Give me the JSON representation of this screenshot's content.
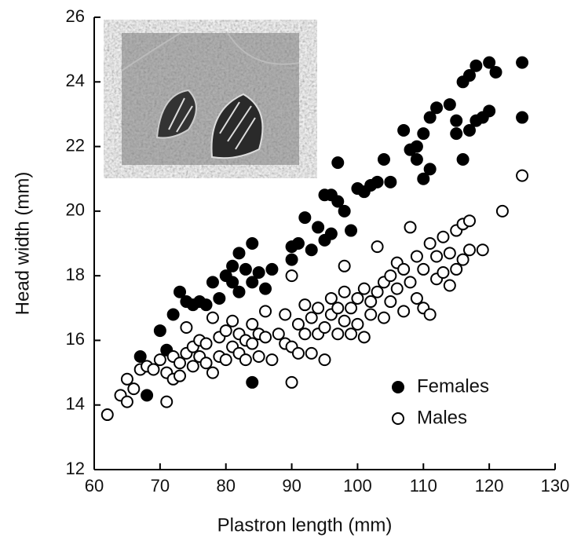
{
  "chart_data": {
    "type": "scatter",
    "x_label": "Plastron length (mm)",
    "y_label": "Head width (mm)",
    "xlim": [
      60,
      130
    ],
    "xticks": [
      60,
      70,
      80,
      90,
      100,
      110,
      120,
      130
    ],
    "ylim": [
      12,
      26
    ],
    "yticks": [
      12,
      14,
      16,
      18,
      20,
      22,
      24,
      26
    ],
    "legend": "lower right",
    "series": [
      {
        "name": "Females",
        "color": "#000000",
        "x": [
          67,
          68,
          70,
          71,
          72,
          73,
          74,
          75,
          76,
          77,
          78,
          79,
          80,
          81,
          81,
          82,
          82,
          83,
          84,
          84,
          85,
          84,
          86,
          87,
          90,
          90,
          91,
          92,
          93,
          94,
          95,
          95,
          96,
          96,
          97,
          97,
          98,
          99,
          100,
          101,
          102,
          103,
          104,
          105,
          107,
          108,
          109,
          109,
          110,
          110,
          111,
          111,
          112,
          114,
          115,
          115,
          116,
          116,
          117,
          117,
          118,
          118,
          119,
          120,
          120,
          121,
          125,
          125
        ],
        "values": [
          15.5,
          14.3,
          16.3,
          15.7,
          16.8,
          17.5,
          17.2,
          17.1,
          17.2,
          17.1,
          17.8,
          17.3,
          18,
          18.3,
          17.8,
          18.7,
          17.5,
          18.2,
          19,
          17.8,
          18.1,
          14.7,
          17.6,
          18.2,
          18.9,
          18.5,
          19,
          19.8,
          18.8,
          19.5,
          20.5,
          19.1,
          20.5,
          19.3,
          21.5,
          20.3,
          20,
          19.4,
          20.7,
          20.6,
          20.8,
          20.9,
          21.6,
          20.9,
          22.5,
          21.9,
          22,
          21.6,
          22.4,
          21,
          22.9,
          21.3,
          23.2,
          23.3,
          22.8,
          22.4,
          24,
          21.6,
          24.2,
          22.5,
          24.5,
          22.8,
          22.9,
          24.6,
          23.1,
          24.3,
          24.6,
          22.9
        ]
      },
      {
        "name": "Males",
        "color": "#ffffff",
        "x": [
          62,
          64,
          65,
          65,
          66,
          67,
          68,
          69,
          70,
          71,
          71,
          72,
          72,
          73,
          73,
          74,
          74,
          75,
          75,
          76,
          76,
          77,
          77,
          78,
          78,
          79,
          79,
          80,
          80,
          81,
          81,
          82,
          82,
          83,
          83,
          84,
          84,
          85,
          85,
          86,
          86,
          87,
          88,
          89,
          89,
          90,
          90,
          90,
          91,
          91,
          92,
          92,
          93,
          93,
          94,
          94,
          95,
          95,
          96,
          96,
          97,
          97,
          98,
          98,
          98,
          99,
          99,
          100,
          100,
          101,
          101,
          102,
          102,
          103,
          103,
          104,
          104,
          105,
          105,
          106,
          106,
          107,
          107,
          108,
          108,
          109,
          109,
          110,
          110,
          111,
          111,
          112,
          112,
          113,
          113,
          114,
          114,
          115,
          115,
          116,
          116,
          117,
          117,
          119,
          122,
          125
        ],
        "values": [
          13.7,
          14.3,
          14.8,
          14.1,
          14.5,
          15.1,
          15.2,
          15.1,
          15.4,
          14.1,
          15,
          14.8,
          15.5,
          14.9,
          15.3,
          15.6,
          16.4,
          15.2,
          15.8,
          15.5,
          16,
          15.3,
          15.9,
          15,
          16.7,
          15.5,
          16.1,
          15.4,
          16.3,
          15.8,
          16.6,
          15.6,
          16.2,
          15.4,
          16,
          15.9,
          16.5,
          16.2,
          15.5,
          16.9,
          16.1,
          15.4,
          16.2,
          16.8,
          15.9,
          15.8,
          14.7,
          18,
          16.5,
          15.6,
          16.2,
          17.1,
          16.7,
          15.6,
          16.2,
          17,
          16.4,
          15.4,
          16.8,
          17.3,
          16.2,
          17,
          16.6,
          17.5,
          18.3,
          17,
          16.2,
          17.3,
          16.5,
          17.6,
          16.1,
          17.2,
          16.8,
          18.9,
          17.5,
          17.8,
          16.7,
          18,
          17.2,
          17.6,
          18.4,
          18.2,
          16.9,
          19.5,
          17.8,
          18.6,
          17.3,
          18.2,
          17,
          19,
          16.8,
          18.6,
          17.9,
          19.2,
          18.1,
          18.7,
          17.7,
          19.4,
          18.2,
          19.6,
          18.5,
          19.7,
          18.8,
          18.8,
          20,
          21.1
        ]
      }
    ]
  }
}
